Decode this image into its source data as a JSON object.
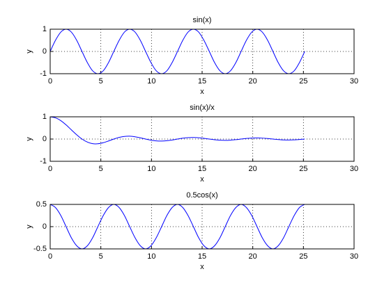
{
  "chart_data": [
    {
      "type": "line",
      "title": "sin(x)",
      "xlabel": "x",
      "ylabel": "y",
      "color": "#0000ff",
      "grid": true,
      "xlim": [
        0,
        30
      ],
      "xticks": [
        0,
        5,
        10,
        15,
        20,
        25,
        30
      ],
      "ylim": [
        -1,
        1
      ],
      "yticks": [
        -1,
        0,
        1
      ],
      "x": [
        0,
        0.52,
        1.05,
        1.57,
        2.09,
        2.62,
        3.14,
        3.67,
        4.19,
        4.71,
        5.24,
        5.76,
        6.28,
        6.81,
        7.33,
        7.85,
        8.38,
        8.9,
        9.42,
        9.95,
        10.47,
        11,
        11.52,
        12.04,
        12.57,
        13.09,
        13.61,
        14.14,
        14.66,
        15.18,
        15.71,
        16.23,
        16.76,
        17.28,
        17.8,
        18.33,
        18.85,
        19.37,
        19.9,
        20.42,
        20.94,
        21.47,
        21.99,
        22.51,
        23.04,
        23.56,
        24.09,
        24.61,
        25.13
      ],
      "values": [
        0,
        0.5,
        0.87,
        1,
        0.87,
        0.5,
        0,
        -0.5,
        -0.87,
        -1,
        -0.87,
        -0.5,
        0,
        0.5,
        0.87,
        1,
        0.87,
        0.5,
        0,
        -0.5,
        -0.87,
        -1,
        -0.87,
        -0.5,
        0,
        0.5,
        0.87,
        1,
        0.87,
        0.5,
        0,
        -0.5,
        -0.87,
        -1,
        -0.87,
        -0.5,
        0,
        0.5,
        0.87,
        1,
        0.87,
        0.5,
        0,
        -0.5,
        -0.87,
        -1,
        -0.87,
        -0.5,
        0
      ]
    },
    {
      "type": "line",
      "title": "sin(x)/x",
      "xlabel": "x",
      "ylabel": "y",
      "color": "#0000ff",
      "grid": true,
      "xlim": [
        0,
        30
      ],
      "xticks": [
        0,
        5,
        10,
        15,
        20,
        25,
        30
      ],
      "ylim": [
        -1,
        1
      ],
      "yticks": [
        -1,
        0,
        1
      ],
      "x": [
        0,
        0.52,
        1.05,
        1.57,
        2.09,
        2.62,
        3.14,
        3.67,
        4.19,
        4.71,
        5.24,
        5.76,
        6.28,
        6.81,
        7.33,
        7.85,
        8.38,
        8.9,
        9.42,
        9.95,
        10.47,
        11,
        11.52,
        12.04,
        12.57,
        13.09,
        13.61,
        14.14,
        14.66,
        15.18,
        15.71,
        16.23,
        16.76,
        17.28,
        17.8,
        18.33,
        18.85,
        19.37,
        19.9,
        20.42,
        20.94,
        21.47,
        21.99,
        22.51,
        23.04,
        23.56,
        24.09,
        24.61,
        25.13
      ],
      "values": [
        1,
        0.955,
        0.827,
        0.637,
        0.414,
        0.191,
        0,
        -0.136,
        -0.207,
        -0.212,
        -0.165,
        -0.087,
        0,
        0.073,
        0.118,
        0.127,
        0.103,
        0.056,
        0,
        -0.05,
        -0.083,
        -0.091,
        -0.075,
        -0.042,
        0,
        0.038,
        0.064,
        0.071,
        0.059,
        0.033,
        0,
        -0.031,
        -0.052,
        -0.058,
        -0.049,
        -0.027,
        0,
        0.026,
        0.044,
        0.049,
        0.041,
        0.023,
        0,
        -0.022,
        -0.038,
        -0.042,
        -0.036,
        -0.02,
        0
      ]
    },
    {
      "type": "line",
      "title": "0.5cos(x)",
      "xlabel": "x",
      "ylabel": "y",
      "color": "#0000ff",
      "grid": true,
      "xlim": [
        0,
        30
      ],
      "xticks": [
        0,
        5,
        10,
        15,
        20,
        25,
        30
      ],
      "ylim": [
        -0.5,
        0.5
      ],
      "yticks": [
        -0.5,
        0,
        0.5
      ],
      "x": [
        0,
        0.52,
        1.05,
        1.57,
        2.09,
        2.62,
        3.14,
        3.67,
        4.19,
        4.71,
        5.24,
        5.76,
        6.28,
        6.81,
        7.33,
        7.85,
        8.38,
        8.9,
        9.42,
        9.95,
        10.47,
        11,
        11.52,
        12.04,
        12.57,
        13.09,
        13.61,
        14.14,
        14.66,
        15.18,
        15.71,
        16.23,
        16.76,
        17.28,
        17.8,
        18.33,
        18.85,
        19.37,
        19.9,
        20.42,
        20.94,
        21.47,
        21.99,
        22.51,
        23.04,
        23.56,
        24.09,
        24.61,
        25.13
      ],
      "values": [
        0.5,
        0.43,
        0.25,
        0,
        -0.25,
        -0.43,
        -0.5,
        -0.43,
        -0.25,
        0,
        0.25,
        0.43,
        0.5,
        0.43,
        0.25,
        0,
        -0.25,
        -0.43,
        -0.5,
        -0.43,
        -0.25,
        0,
        0.25,
        0.43,
        0.5,
        0.43,
        0.25,
        0,
        -0.25,
        -0.43,
        -0.5,
        -0.43,
        -0.25,
        0,
        0.25,
        0.43,
        0.5,
        0.43,
        0.25,
        0,
        -0.25,
        -0.43,
        -0.5,
        -0.43,
        -0.25,
        0,
        0.25,
        0.43,
        0.5
      ]
    }
  ]
}
